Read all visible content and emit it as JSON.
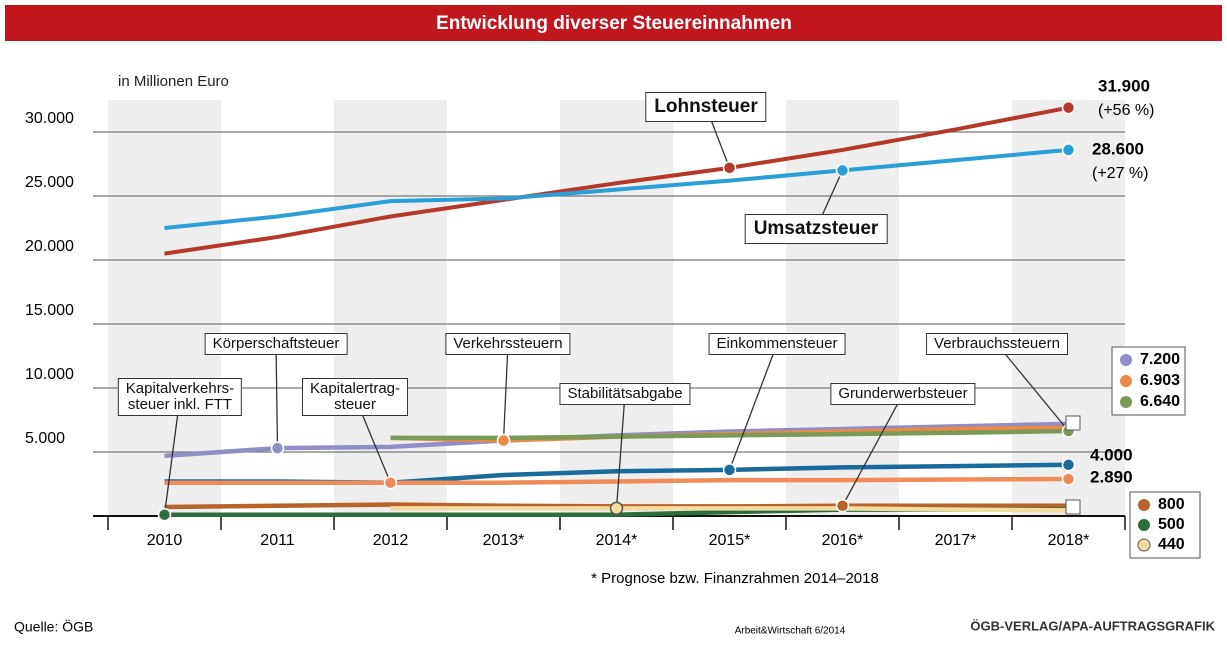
{
  "chart_data": {
    "type": "line",
    "title": "Entwicklung diverser Steuereinnahmen",
    "unit_label": "in Millionen Euro",
    "footnote": "* Prognose bzw. Finanzrahmen 2014–2018",
    "source": "Quelle: ÖGB",
    "publication": "Arbeit&Wirtschaft 6/2014",
    "credit": "ÖGB-VERLAG/APA-AUFTRAGSGRAFIK",
    "categories": [
      "2010",
      "2011",
      "2012",
      "2013*",
      "2014*",
      "2015*",
      "2016*",
      "2017*",
      "2018*"
    ],
    "ylim": [
      0,
      32500
    ],
    "yticks": [
      {
        "value": 5000,
        "label": "5.000"
      },
      {
        "value": 10000,
        "label": "10.000"
      },
      {
        "value": 15000,
        "label": "15.000"
      },
      {
        "value": 20000,
        "label": "20.000"
      },
      {
        "value": 25000,
        "label": "25.000"
      },
      {
        "value": 30000,
        "label": "30.000"
      }
    ],
    "grid": true,
    "series": [
      {
        "name": "Lohnsteuer",
        "color": "#b5382a",
        "values": [
          20500,
          21800,
          23400,
          24700,
          26000,
          27200,
          28600,
          30200,
          31900
        ],
        "value_labels": [
          null,
          null,
          null,
          null,
          null,
          null,
          null,
          null,
          "31.900"
        ],
        "change": "(+56 %)"
      },
      {
        "name": "Umsatzsteuer",
        "color": "#2a9fd6",
        "values": [
          22500,
          23400,
          24600,
          24800,
          25500,
          26200,
          27000,
          27800,
          28600
        ],
        "value_labels": [
          null,
          null,
          null,
          null,
          null,
          null,
          null,
          null,
          "28.600"
        ],
        "change": "(+27 %)"
      },
      {
        "name": "Körperschaftsteuer",
        "color": "#8f8fc6",
        "values": [
          4700,
          5300,
          5400,
          5900,
          6300,
          6600,
          6800,
          7000,
          7200
        ],
        "value_labels": [
          null,
          null,
          null,
          null,
          null,
          null,
          null,
          null,
          "7.200"
        ]
      },
      {
        "name": "Verkehrssteuern",
        "color": "#e98a4a",
        "values": [
          null,
          null,
          6100,
          5900,
          6200,
          6400,
          6600,
          6800,
          6903
        ],
        "value_labels": [
          null,
          null,
          null,
          null,
          null,
          null,
          null,
          null,
          "6.903"
        ]
      },
      {
        "name": "Verbrauchssteuern",
        "color": "#7a9a5a",
        "values": [
          null,
          null,
          6100,
          6100,
          6200,
          6300,
          6400,
          6500,
          6640
        ],
        "value_labels": [
          null,
          null,
          null,
          null,
          null,
          null,
          null,
          null,
          "6.640"
        ]
      },
      {
        "name": "Einkommensteuer",
        "color": "#1a6a9a",
        "values": [
          2700,
          2700,
          2600,
          3200,
          3500,
          3600,
          3800,
          3900,
          4000
        ],
        "value_labels": [
          null,
          null,
          null,
          null,
          null,
          null,
          null,
          null,
          "4.000"
        ]
      },
      {
        "name": "Kapitalertrag-\nsteuer",
        "color": "#f08c5c",
        "values": [
          2600,
          2600,
          2600,
          2600,
          2700,
          2800,
          2800,
          2850,
          2890
        ],
        "value_labels": [
          null,
          null,
          null,
          null,
          null,
          null,
          null,
          null,
          "2.890"
        ]
      },
      {
        "name": "Grunderwerbsteuer",
        "color": "#b8632a",
        "values": [
          700,
          800,
          900,
          800,
          750,
          750,
          800,
          800,
          800
        ],
        "value_labels": [
          null,
          null,
          null,
          null,
          null,
          null,
          null,
          null,
          "800"
        ]
      },
      {
        "name": "Kapitalverkehrs-\nsteuer inkl. FTT",
        "color": "#2e6e3e",
        "values": [
          100,
          100,
          100,
          100,
          100,
          300,
          500,
          500,
          500
        ],
        "value_labels": [
          null,
          null,
          null,
          null,
          null,
          null,
          null,
          null,
          "500"
        ]
      },
      {
        "name": "Stabilitätsabgabe",
        "color": "#f3dca0",
        "values": [
          null,
          null,
          600,
          600,
          600,
          600,
          600,
          500,
          440
        ],
        "value_labels": [
          null,
          null,
          null,
          null,
          null,
          null,
          null,
          null,
          "440"
        ]
      }
    ]
  }
}
